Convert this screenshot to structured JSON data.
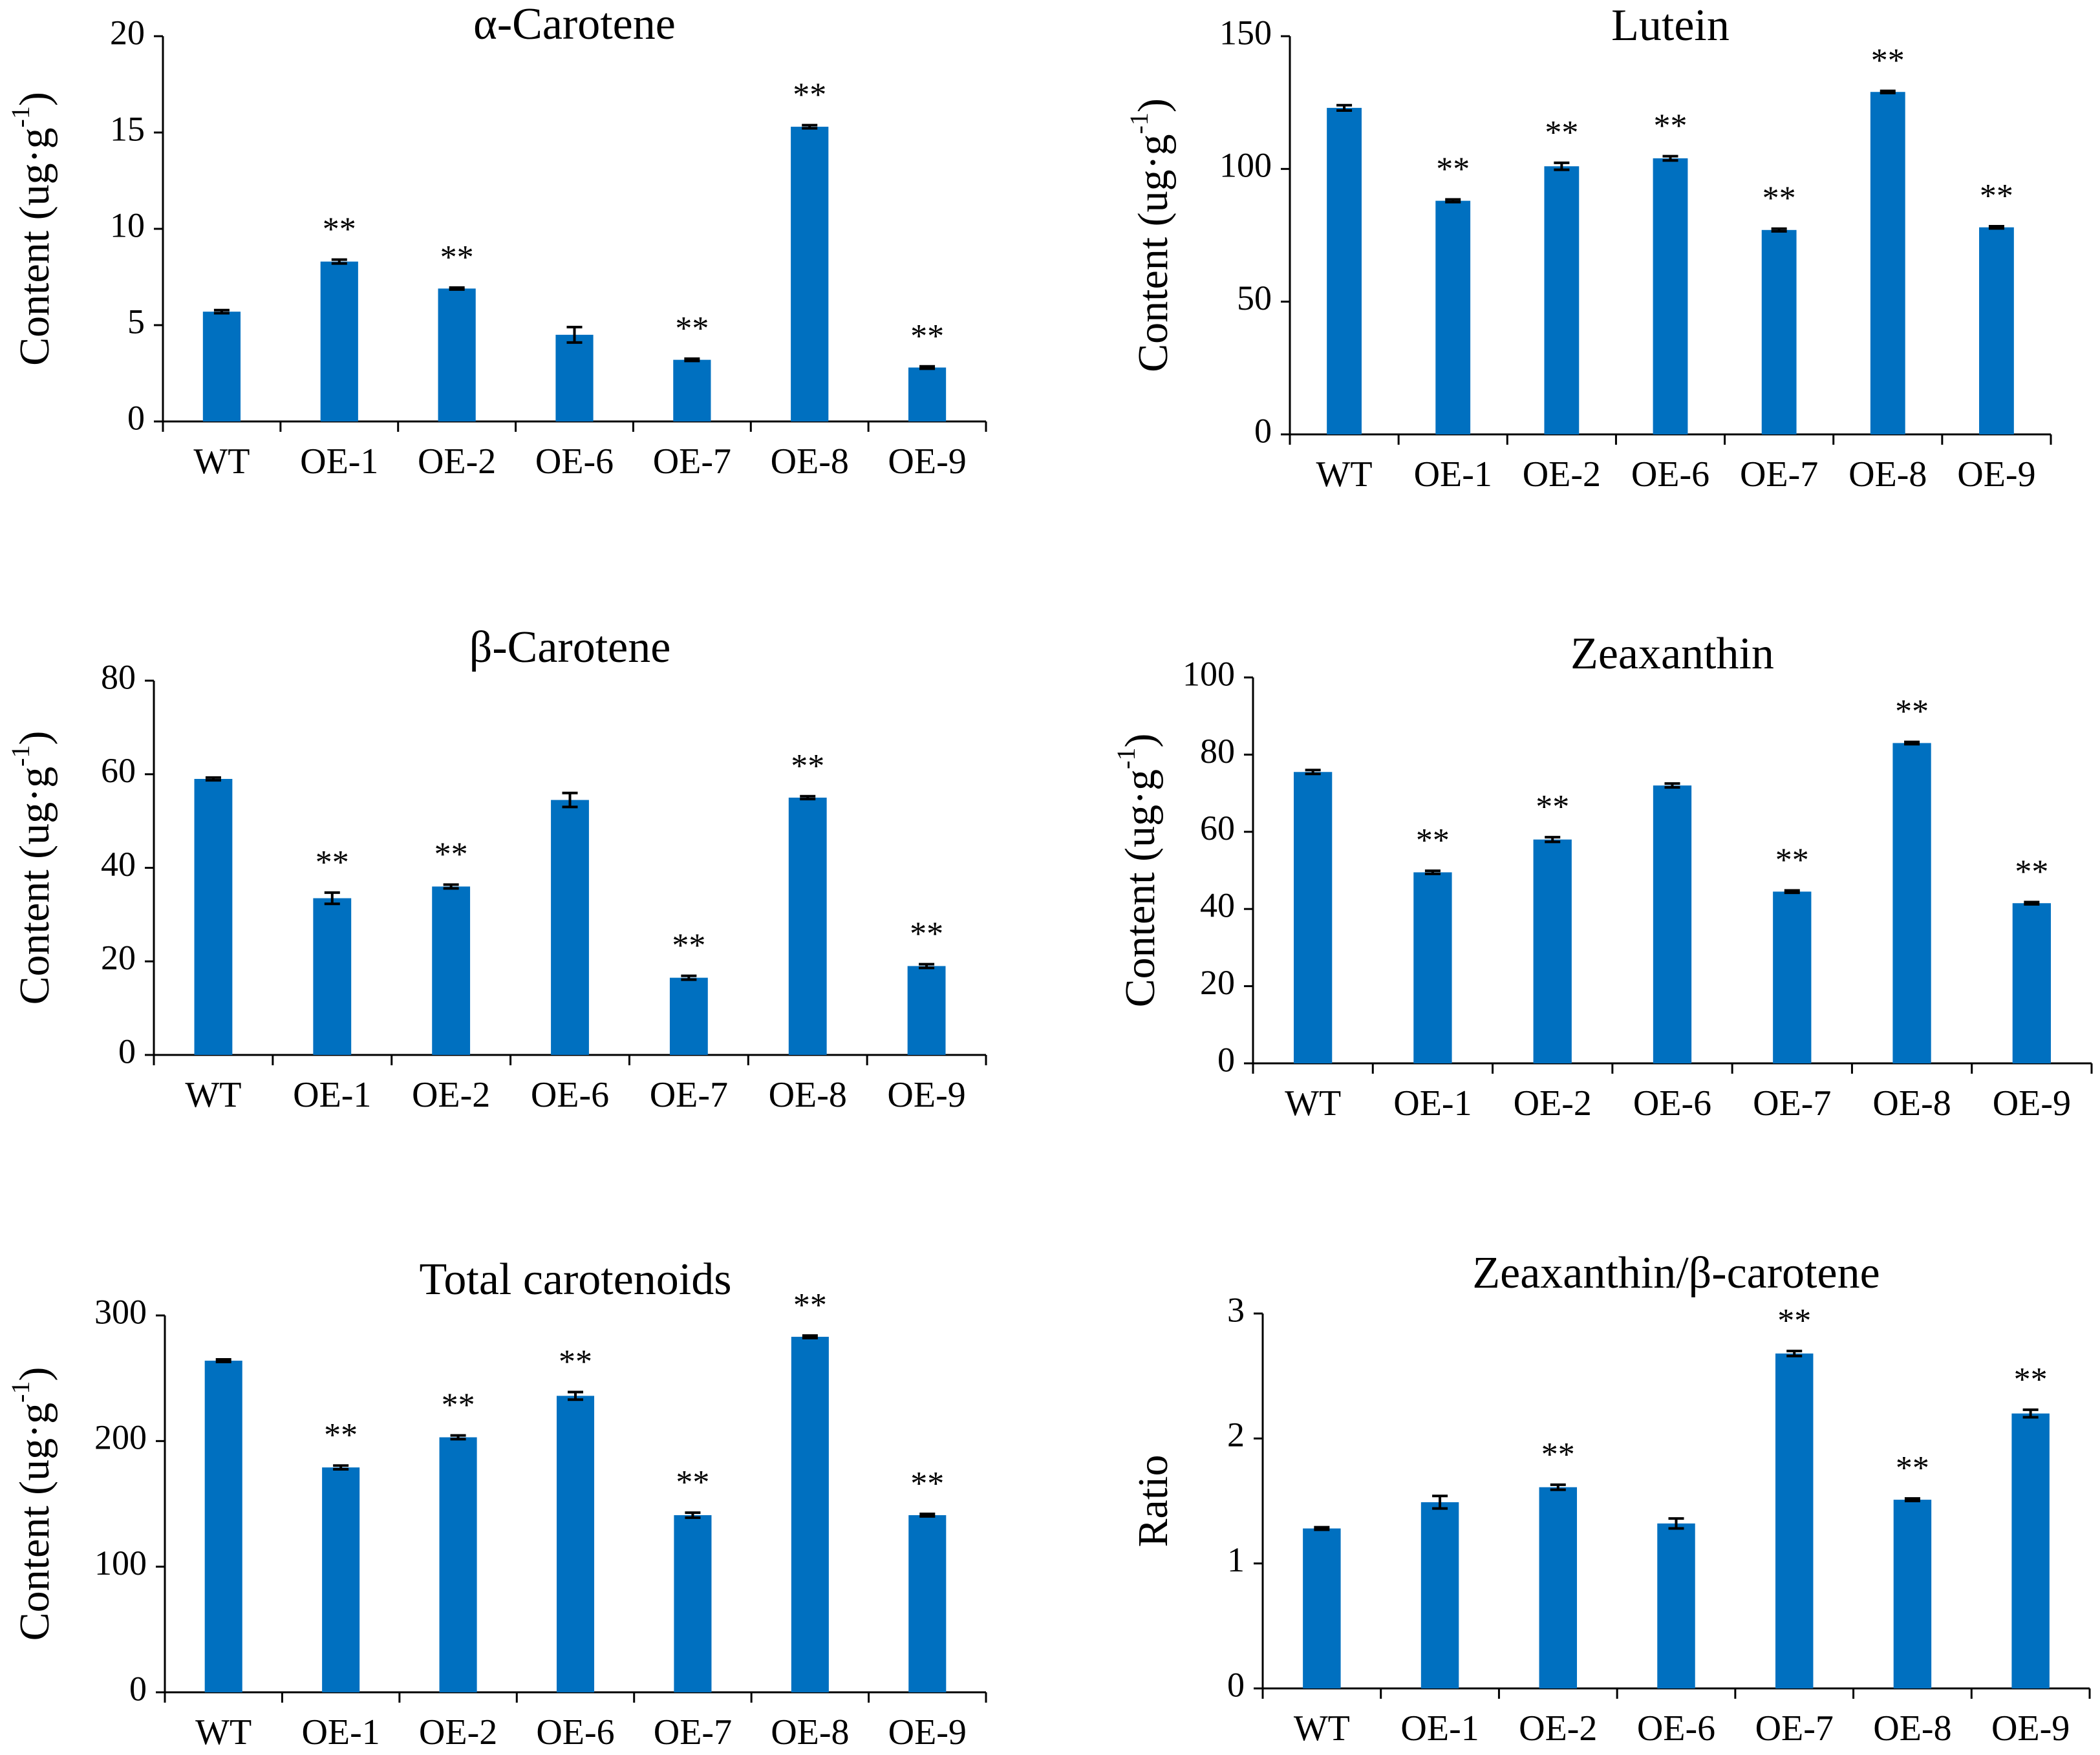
{
  "figure": {
    "bar_color": "#0070c0",
    "text_color": "#000000"
  },
  "chart_data": [
    {
      "type": "bar",
      "title": "α-Carotene",
      "ylabel": "Content (ug·g",
      "ylabel_sup": "-1",
      "ylabel_close": ")",
      "categories": [
        "WT",
        "OE-1",
        "OE-2",
        "OE-6",
        "OE-7",
        "OE-8",
        "OE-9"
      ],
      "values": [
        5.7,
        8.3,
        6.9,
        4.5,
        3.2,
        15.3,
        2.8
      ],
      "errors": [
        0.08,
        0.1,
        0.05,
        0.4,
        0.06,
        0.08,
        0.06
      ],
      "significance": [
        "",
        "**",
        "**",
        "",
        "**",
        "**",
        "**"
      ],
      "ylim": [
        0,
        20
      ],
      "yticks": [
        0,
        5,
        10,
        15,
        20
      ],
      "grid": false
    },
    {
      "type": "bar",
      "title": "Lutein",
      "ylabel": "Content (ug·g",
      "ylabel_sup": "-1",
      "ylabel_close": ")",
      "categories": [
        "WT",
        "OE-1",
        "OE-2",
        "OE-6",
        "OE-7",
        "OE-8",
        "OE-9"
      ],
      "values": [
        123,
        88,
        101,
        104,
        77,
        129,
        78
      ],
      "errors": [
        1,
        0.5,
        1.3,
        0.8,
        0.5,
        0.4,
        0.4
      ],
      "significance": [
        "",
        "**",
        "**",
        "**",
        "**",
        "**",
        "**"
      ],
      "ylim": [
        0,
        150
      ],
      "yticks": [
        0,
        50,
        100,
        150
      ],
      "grid": false
    },
    {
      "type": "bar",
      "title": "β-Carotene",
      "ylabel": "Content (ug·g",
      "ylabel_sup": "-1",
      "ylabel_close": ")",
      "categories": [
        "WT",
        "OE-1",
        "OE-2",
        "OE-6",
        "OE-7",
        "OE-8",
        "OE-9"
      ],
      "values": [
        59,
        33.5,
        36,
        54.5,
        16.5,
        55,
        19
      ],
      "errors": [
        0.3,
        1.2,
        0.4,
        1.5,
        0.4,
        0.3,
        0.4
      ],
      "significance": [
        "",
        "**",
        "**",
        "",
        "**",
        "**",
        "**"
      ],
      "ylim": [
        0,
        80
      ],
      "yticks": [
        0,
        20,
        40,
        60,
        80
      ],
      "grid": false
    },
    {
      "type": "bar",
      "title": "Zeaxanthin",
      "ylabel": "Content (ug·g",
      "ylabel_sup": "-1",
      "ylabel_close": ")",
      "categories": [
        "WT",
        "OE-1",
        "OE-2",
        "OE-6",
        "OE-7",
        "OE-8",
        "OE-9"
      ],
      "values": [
        75.5,
        49.5,
        58,
        72,
        44.5,
        83,
        41.5
      ],
      "errors": [
        0.5,
        0.4,
        0.6,
        0.5,
        0.3,
        0.3,
        0.3
      ],
      "significance": [
        "",
        "**",
        "**",
        "",
        "**",
        "**",
        "**"
      ],
      "ylim": [
        0,
        100
      ],
      "yticks": [
        0,
        20,
        40,
        60,
        80,
        100
      ],
      "grid": false
    },
    {
      "type": "bar",
      "title": "Total carotenoids",
      "ylabel": "Content (ug·g",
      "ylabel_sup": "-1",
      "ylabel_close": ")",
      "categories": [
        "WT",
        "OE-1",
        "OE-2",
        "OE-6",
        "OE-7",
        "OE-8",
        "OE-9"
      ],
      "values": [
        264,
        179,
        203,
        236,
        141,
        283,
        141
      ],
      "errors": [
        1,
        1.5,
        1.5,
        3,
        2,
        1,
        1
      ],
      "significance": [
        "",
        "**",
        "**",
        "**",
        "**",
        "**",
        "**"
      ],
      "ylim": [
        0,
        300
      ],
      "yticks": [
        0,
        100,
        200,
        300
      ],
      "grid": false
    },
    {
      "type": "bar",
      "title": "Zeaxanthin/β-carotene",
      "ylabel": "Ratio",
      "ylabel_sup": "",
      "ylabel_close": "",
      "categories": [
        "WT",
        "OE-1",
        "OE-2",
        "OE-6",
        "OE-7",
        "OE-8",
        "OE-9"
      ],
      "values": [
        1.28,
        1.49,
        1.61,
        1.32,
        2.68,
        1.51,
        2.2
      ],
      "errors": [
        0.01,
        0.05,
        0.02,
        0.04,
        0.02,
        0.01,
        0.03
      ],
      "significance": [
        "",
        "",
        "**",
        "",
        "**",
        "**",
        "**"
      ],
      "ylim": [
        0,
        3
      ],
      "yticks": [
        0,
        1,
        2,
        3
      ],
      "grid": false
    }
  ]
}
